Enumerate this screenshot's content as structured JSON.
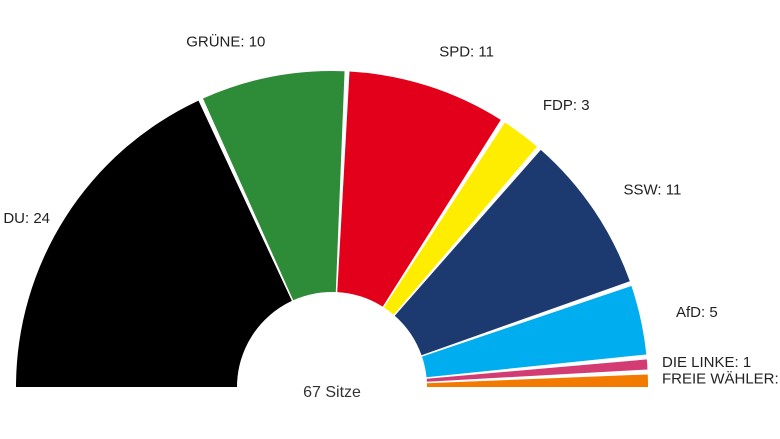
{
  "chart_data": {
    "type": "pie",
    "subtype": "parliament-half-donut",
    "total_label": "67 Sitze",
    "segments": [
      {
        "label": "DU: 24",
        "name": "CDU",
        "value": 24,
        "color": "#000000"
      },
      {
        "label": "GRÜNE: 10",
        "name": "GRÜNE",
        "value": 10,
        "color": "#2e8b37"
      },
      {
        "label": "SPD: 11",
        "name": "SPD",
        "value": 11,
        "color": "#e2001a"
      },
      {
        "label": "FDP: 3",
        "name": "FDP",
        "value": 3,
        "color": "#ffed00"
      },
      {
        "label": "SSW: 11",
        "name": "SSW",
        "value": 11,
        "color": "#1c3a70"
      },
      {
        "label": "AfD: 5",
        "name": "AfD",
        "value": 5,
        "color": "#00adef"
      },
      {
        "label": "DIE LINKE: 1",
        "name": "DIE LINKE",
        "value": 1,
        "color": "#d23c73"
      },
      {
        "label": "FREIE WÄHLER:",
        "name": "FREIE WÄHLER",
        "value": 1,
        "color": "#f27a00"
      }
    ]
  }
}
